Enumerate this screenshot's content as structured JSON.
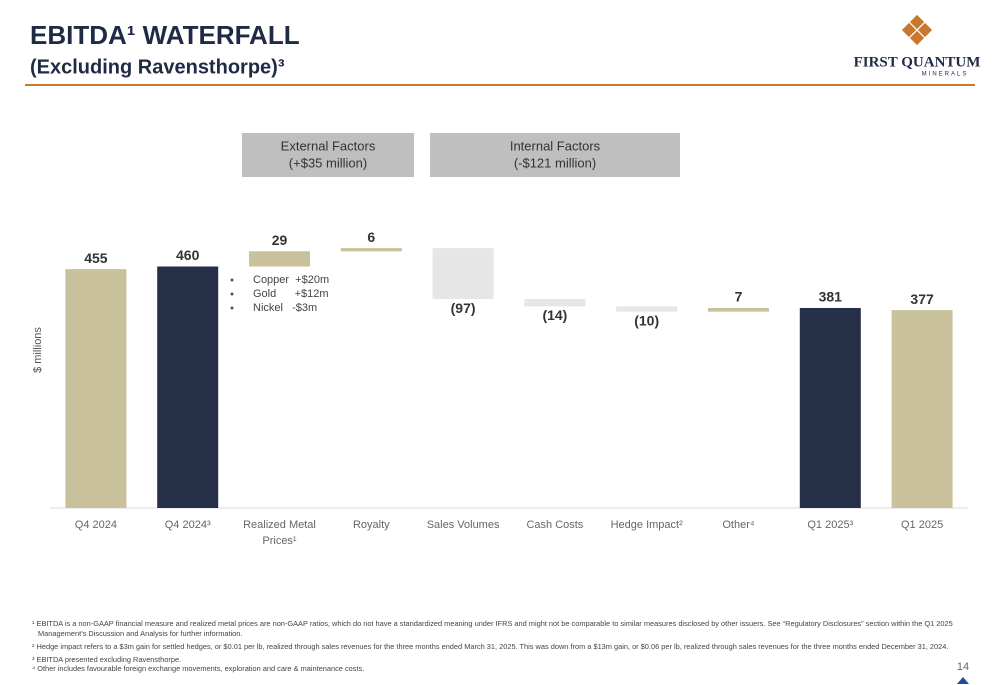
{
  "header": {
    "title": "EBITDA¹ WATERFALL",
    "subtitle": "(Excluding Ravensthorpe)³",
    "logo": "FIRST QUANTUM",
    "logo_sub": "MINERALS"
  },
  "groups": [
    {
      "title": "External Factors",
      "subtitle": "(+$35 million)"
    },
    {
      "title": "Internal Factors",
      "subtitle": "(-$121 million)"
    }
  ],
  "chart_data": {
    "type": "waterfall",
    "y_label": "$ millions",
    "categories": [
      "Q4 2024",
      "Q4 2024³",
      "Realized Metal Prices¹",
      "Royalty",
      "Sales Volumes",
      "Cash Costs",
      "Hedge Impact²",
      "Other⁴",
      "Q1 2025³",
      "Q1 2025"
    ],
    "values": [
      455,
      460,
      29,
      6,
      -97,
      -14,
      -10,
      7,
      381,
      377
    ],
    "value_labels": [
      "455",
      "460",
      "29",
      "6",
      "(97)",
      "(14)",
      "(10)",
      "7",
      "381",
      "377"
    ],
    "measure": [
      "absolute",
      "absolute",
      "relative",
      "relative",
      "relative",
      "relative",
      "relative",
      "relative",
      "absolute",
      "absolute"
    ],
    "colors": [
      "#c9c19b",
      "#252f47",
      "#c9c19b",
      "#c9c19b",
      "#e6e6e6",
      "#e6e6e6",
      "#e6e6e6",
      "#c9c19b",
      "#252f47",
      "#c9c19b"
    ],
    "ylim": [
      0,
      500
    ],
    "annotations": [
      "Copper  +$20m",
      "Gold      +$12m",
      "Nickel   -$3m"
    ]
  },
  "footnotes": [
    "¹ EBITDA is a non-GAAP financial measure and realized metal prices are non-GAAP ratios, which do not have a standardized meaning under IFRS and might not be comparable to similar measures disclosed by other issuers. See “Regulatory Disclosures” section within the Q1 2025 Management’s Discussion and Analysis for further information.",
    "² Hedge impact refers to a $3m gain for settled hedges, or $0.01 per lb, realized through sales revenues for the three months ended March 31, 2025. This was down from a $13m gain, or $0.06 per lb, realized through sales revenues for the three months ended December 31, 2024.",
    "³ EBITDA presented excluding Ravensthorpe.",
    "⁴ Other includes favourable foreign exchange movements, exploration and care & maintenance costs."
  ],
  "page_number": "14"
}
